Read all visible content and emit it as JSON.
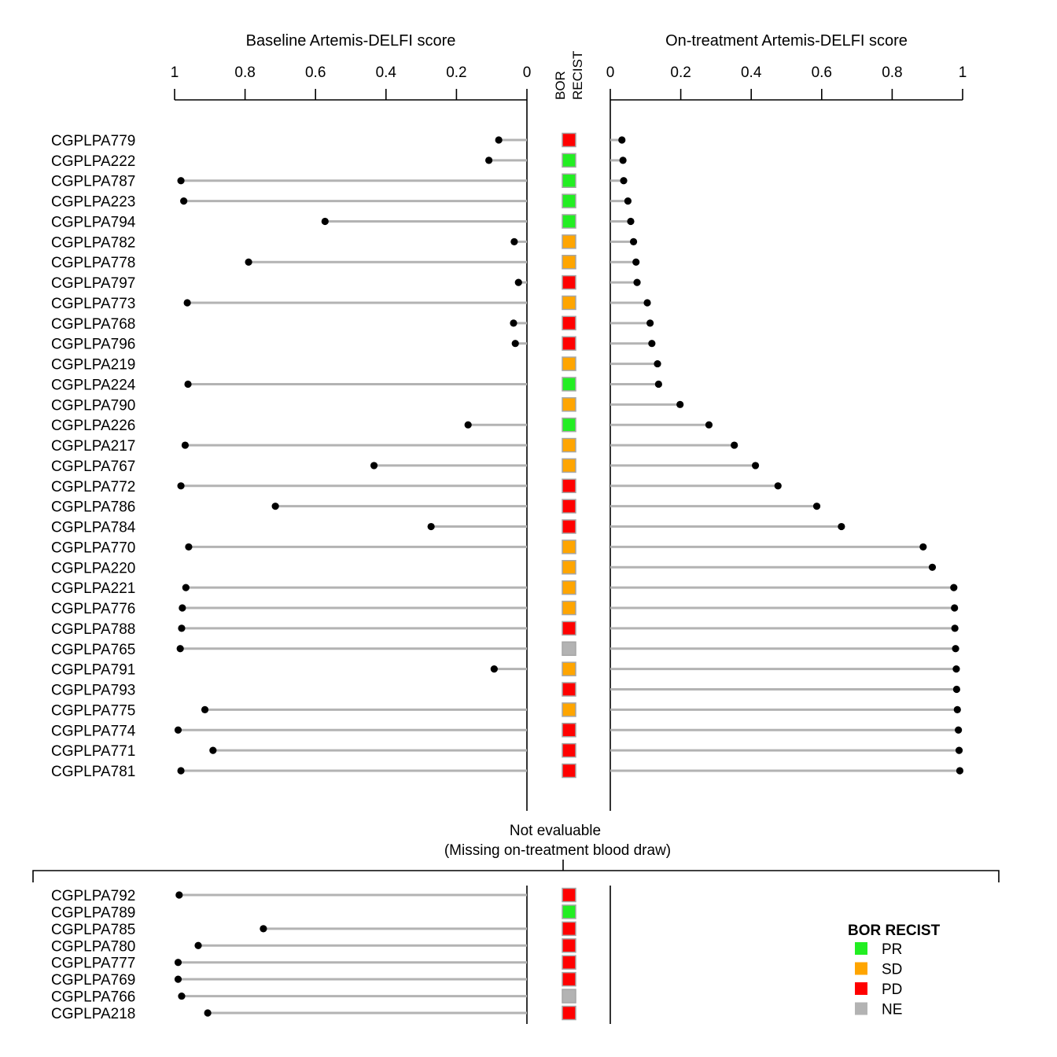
{
  "chart_data": {
    "type": "lollipop",
    "left_panel": {
      "title": "Baseline Artemis-DELFI score",
      "xlim": [
        1,
        0
      ],
      "ticks": [
        "1",
        "0.8",
        "0.6",
        "0.4",
        "0.2",
        "0"
      ]
    },
    "right_panel": {
      "title": "On-treatment Artemis-DELFI score",
      "xlim": [
        0,
        1
      ],
      "ticks": [
        "0",
        "0.2",
        "0.4",
        "0.6",
        "0.8",
        "1"
      ]
    },
    "center_column": {
      "label_line1": "BOR",
      "label_line2": "RECIST"
    },
    "rows": [
      {
        "id": "CGPLPA779",
        "baseline": 0.08,
        "on_treatment": 0.033,
        "bor": "PD"
      },
      {
        "id": "CGPLPA222",
        "baseline": 0.108,
        "on_treatment": 0.036,
        "bor": "PR"
      },
      {
        "id": "CGPLPA787",
        "baseline": 0.982,
        "on_treatment": 0.038,
        "bor": "PR"
      },
      {
        "id": "CGPLPA223",
        "baseline": 0.974,
        "on_treatment": 0.05,
        "bor": "PR"
      },
      {
        "id": "CGPLPA794",
        "baseline": 0.573,
        "on_treatment": 0.058,
        "bor": "PR"
      },
      {
        "id": "CGPLPA782",
        "baseline": 0.036,
        "on_treatment": 0.066,
        "bor": "SD"
      },
      {
        "id": "CGPLPA778",
        "baseline": 0.79,
        "on_treatment": 0.073,
        "bor": "SD"
      },
      {
        "id": "CGPLPA797",
        "baseline": 0.024,
        "on_treatment": 0.076,
        "bor": "PD"
      },
      {
        "id": "CGPLPA773",
        "baseline": 0.964,
        "on_treatment": 0.105,
        "bor": "SD"
      },
      {
        "id": "CGPLPA768",
        "baseline": 0.038,
        "on_treatment": 0.113,
        "bor": "PD"
      },
      {
        "id": "CGPLPA796",
        "baseline": 0.033,
        "on_treatment": 0.118,
        "bor": "PD"
      },
      {
        "id": "CGPLPA219",
        "baseline": null,
        "on_treatment": 0.134,
        "bor": "SD"
      },
      {
        "id": "CGPLPA224",
        "baseline": 0.962,
        "on_treatment": 0.137,
        "bor": "PR"
      },
      {
        "id": "CGPLPA790",
        "baseline": null,
        "on_treatment": 0.198,
        "bor": "SD"
      },
      {
        "id": "CGPLPA226",
        "baseline": 0.167,
        "on_treatment": 0.28,
        "bor": "PR"
      },
      {
        "id": "CGPLPA217",
        "baseline": 0.97,
        "on_treatment": 0.352,
        "bor": "SD"
      },
      {
        "id": "CGPLPA767",
        "baseline": 0.434,
        "on_treatment": 0.412,
        "bor": "SD"
      },
      {
        "id": "CGPLPA772",
        "baseline": 0.982,
        "on_treatment": 0.476,
        "bor": "PD"
      },
      {
        "id": "CGPLPA786",
        "baseline": 0.714,
        "on_treatment": 0.586,
        "bor": "PD"
      },
      {
        "id": "CGPLPA784",
        "baseline": 0.272,
        "on_treatment": 0.656,
        "bor": "PD"
      },
      {
        "id": "CGPLPA770",
        "baseline": 0.96,
        "on_treatment": 0.888,
        "bor": "SD"
      },
      {
        "id": "CGPLPA220",
        "baseline": null,
        "on_treatment": 0.914,
        "bor": "SD"
      },
      {
        "id": "CGPLPA221",
        "baseline": 0.968,
        "on_treatment": 0.975,
        "bor": "SD"
      },
      {
        "id": "CGPLPA776",
        "baseline": 0.978,
        "on_treatment": 0.977,
        "bor": "SD"
      },
      {
        "id": "CGPLPA788",
        "baseline": 0.98,
        "on_treatment": 0.978,
        "bor": "PD"
      },
      {
        "id": "CGPLPA765",
        "baseline": 0.984,
        "on_treatment": 0.98,
        "bor": "NE"
      },
      {
        "id": "CGPLPA791",
        "baseline": 0.093,
        "on_treatment": 0.982,
        "bor": "SD"
      },
      {
        "id": "CGPLPA793",
        "baseline": null,
        "on_treatment": 0.983,
        "bor": "PD"
      },
      {
        "id": "CGPLPA775",
        "baseline": 0.914,
        "on_treatment": 0.985,
        "bor": "SD"
      },
      {
        "id": "CGPLPA774",
        "baseline": 0.99,
        "on_treatment": 0.988,
        "bor": "PD"
      },
      {
        "id": "CGPLPA771",
        "baseline": 0.891,
        "on_treatment": 0.99,
        "bor": "PD"
      },
      {
        "id": "CGPLPA781",
        "baseline": 0.982,
        "on_treatment": 0.992,
        "bor": "PD"
      }
    ],
    "not_evaluable": {
      "label_line1": "Not evaluable",
      "label_line2": "(Missing on-treatment blood draw)",
      "rows": [
        {
          "id": "CGPLPA792",
          "baseline": 0.987,
          "bor": "PD"
        },
        {
          "id": "CGPLPA789",
          "baseline": null,
          "bor": "PR"
        },
        {
          "id": "CGPLPA785",
          "baseline": 0.748,
          "bor": "PD"
        },
        {
          "id": "CGPLPA780",
          "baseline": 0.933,
          "bor": "PD"
        },
        {
          "id": "CGPLPA777",
          "baseline": 0.99,
          "bor": "PD"
        },
        {
          "id": "CGPLPA769",
          "baseline": 0.99,
          "bor": "PD"
        },
        {
          "id": "CGPLPA766",
          "baseline": 0.98,
          "bor": "NE"
        },
        {
          "id": "CGPLPA218",
          "baseline": 0.906,
          "bor": "PD"
        }
      ]
    },
    "legend": {
      "title": "BOR RECIST",
      "placement": "bottom-right",
      "items": [
        {
          "key": "PR",
          "label": "PR",
          "color": "#22ee22"
        },
        {
          "key": "SD",
          "label": "SD",
          "color": "#ffa500"
        },
        {
          "key": "PD",
          "label": "PD",
          "color": "#ff0000"
        },
        {
          "key": "NE",
          "label": "NE",
          "color": "#b3b3b3"
        }
      ]
    },
    "colors": {
      "stem": "#b3b3b3",
      "point": "#000000",
      "axis": "#000000",
      "box_border": "#a6a6a6"
    }
  }
}
